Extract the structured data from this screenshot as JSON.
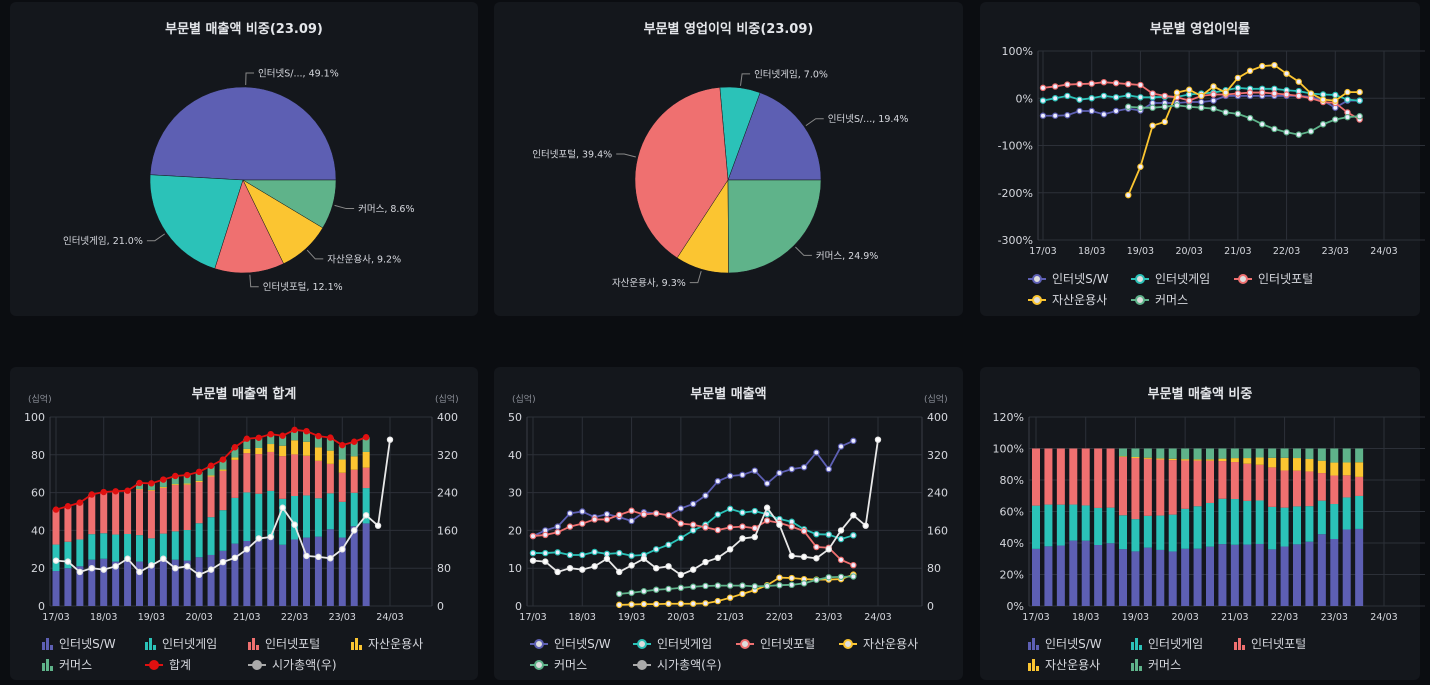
{
  "colors": {
    "sw": "#5d5fb3",
    "game": "#2bc2b8",
    "portal": "#ef7070",
    "asset": "#fbc531",
    "commerce": "#5fb38a",
    "total": "#e01010",
    "mcap": "#e8e8e8"
  },
  "segments": [
    "인터넷S/W",
    "인터넷게임",
    "인터넷포털",
    "자산운용사",
    "커머스"
  ],
  "x_ticks": [
    "17/03",
    "18/03",
    "19/03",
    "20/03",
    "21/03",
    "22/03",
    "23/03",
    "24/03"
  ],
  "unit_label": "(십억)",
  "pie_sales": {
    "title": "부문별 매출액 비중(23.09)",
    "chart_data": {
      "type": "pie",
      "labels": [
        "인터넷S/...",
        "인터넷게임",
        "인터넷포털",
        "자산운용사",
        "커머스"
      ],
      "values": [
        49.1,
        21.0,
        12.1,
        9.2,
        8.6
      ]
    }
  },
  "pie_profit": {
    "title": "부문별 영업이익 비중(23.09)",
    "chart_data": {
      "type": "pie",
      "labels": [
        "인터넷S/...",
        "인터넷게임",
        "인터넷포털",
        "자산운용사",
        "커머스"
      ],
      "values": [
        19.4,
        7.0,
        39.4,
        9.3,
        24.9
      ]
    }
  },
  "margin": {
    "title": "부문별 영업이익률",
    "chart_data": {
      "type": "line",
      "ylim": [
        -300,
        100
      ],
      "y_ticks": [
        -300,
        -200,
        -100,
        0,
        100
      ],
      "y_suffix": "%",
      "grid": true,
      "legend": "bottom",
      "series": [
        {
          "name": "인터넷S/W",
          "values": [
            -37,
            -37,
            -36,
            -27,
            -27,
            -34,
            -27,
            -22,
            -26,
            -10,
            -10,
            -10,
            -8,
            -8,
            -5,
            5,
            5,
            5,
            5,
            5,
            5,
            5,
            3,
            -5,
            -20,
            -5,
            -5
          ]
        },
        {
          "name": "인터넷게임",
          "values": [
            -5,
            0,
            5,
            -3,
            0,
            5,
            2,
            6,
            2,
            2,
            3,
            3,
            8,
            10,
            12,
            17,
            22,
            20,
            20,
            20,
            17,
            15,
            10,
            8,
            7,
            -3,
            -5
          ]
        },
        {
          "name": "인터넷포털",
          "values": [
            22,
            25,
            29,
            30,
            31,
            34,
            32,
            30,
            28,
            10,
            5,
            2,
            -5,
            5,
            8,
            8,
            10,
            12,
            12,
            10,
            8,
            5,
            0,
            -8,
            -10,
            -30,
            -45
          ]
        },
        {
          "name": "자산운용사",
          "values": [
            null,
            null,
            null,
            null,
            null,
            null,
            null,
            -205,
            -145,
            -58,
            -50,
            12,
            18,
            5,
            25,
            12,
            43,
            58,
            68,
            70,
            52,
            35,
            10,
            -3,
            -5,
            13,
            13
          ]
        },
        {
          "name": "커머스",
          "values": [
            null,
            null,
            null,
            null,
            null,
            null,
            null,
            -18,
            -20,
            -20,
            -18,
            -15,
            -18,
            -20,
            -22,
            -30,
            -33,
            -42,
            -55,
            -65,
            -72,
            -77,
            -70,
            -55,
            -45,
            -40,
            -38
          ]
        }
      ]
    }
  },
  "sales_total": {
    "title": "부문별 매출액 합계",
    "total_label": "합계",
    "mcap_label": "시가총액(우)",
    "chart_data": {
      "type": "bar",
      "stacked": true,
      "ylim": [
        0,
        100
      ],
      "y_ticks": [
        0,
        20,
        40,
        60,
        80,
        100
      ],
      "y2lim": [
        0,
        400
      ],
      "y2_ticks": [
        0,
        80,
        160,
        240,
        320,
        400
      ],
      "grid": true,
      "legend": "bottom"
    }
  },
  "sales": {
    "title": "부문별 매출액",
    "chart_data": {
      "type": "line",
      "ylim": [
        0,
        50
      ],
      "y_ticks": [
        0,
        10,
        20,
        30,
        40,
        50
      ],
      "y2lim": [
        0,
        400
      ],
      "y2_ticks": [
        0,
        80,
        160,
        240,
        320,
        400
      ],
      "grid": true,
      "legend": "bottom"
    }
  },
  "sales_share": {
    "title": "부문별 매출액 비중",
    "chart_data": {
      "type": "bar",
      "stacked": true,
      "percent": true,
      "ylim": [
        0,
        120
      ],
      "y_ticks": [
        0,
        20,
        40,
        60,
        80,
        100,
        120
      ],
      "y_suffix": "%",
      "grid": true,
      "legend": "bottom"
    }
  },
  "chart_data": {
    "type": "line",
    "segment_sales": [
      {
        "name": "인터넷S/W",
        "values": [
          18.5,
          20,
          21,
          24.5,
          25,
          23.5,
          24.3,
          23.5,
          22.5,
          24.8,
          24.5,
          24,
          25.8,
          27,
          29.2,
          33,
          34.4,
          34.7,
          35.8,
          32.4,
          35.2,
          36.2,
          36.7,
          40.6,
          36.2,
          42.2,
          43.7
        ]
      },
      {
        "name": "인터넷게임",
        "values": [
          14,
          14,
          14.2,
          13.5,
          13.5,
          14.3,
          13.8,
          14,
          13.3,
          13.5,
          15,
          16.2,
          18,
          20,
          21.5,
          24.2,
          25.7,
          24.7,
          25.1,
          24.3,
          23,
          22.3,
          20.3,
          19,
          18.9,
          17.7,
          18.7
        ]
      },
      {
        "name": "인터넷포털",
        "values": [
          18.5,
          18.8,
          19.5,
          21,
          21.8,
          22.9,
          22.9,
          24.1,
          25.2,
          24.2,
          24.5,
          24,
          21.8,
          21.5,
          20.8,
          20.1,
          20.8,
          21,
          20.6,
          22.6,
          22,
          21,
          19.8,
          15.6,
          15.4,
          12.2,
          10.8
        ]
      },
      {
        "name": "자산운용사",
        "values": [
          null,
          null,
          null,
          null,
          null,
          null,
          null,
          0.3,
          0.4,
          0.5,
          0.5,
          0.6,
          0.6,
          0.6,
          0.7,
          1.3,
          2.2,
          3.2,
          4.2,
          5.5,
          7.5,
          7.4,
          7.1,
          7,
          7,
          7.1,
          8.3
        ]
      },
      {
        "name": "커머스",
        "values": [
          null,
          null,
          null,
          null,
          null,
          null,
          null,
          3.2,
          3.5,
          3.9,
          4.3,
          4.5,
          4.8,
          5.1,
          5.3,
          5.4,
          5.4,
          5.4,
          5.2,
          5.3,
          5.5,
          5.6,
          6.0,
          6.9,
          7.6,
          7.7,
          7.8
        ]
      }
    ],
    "market_cap": {
      "name": "시가총액(우)",
      "values": [
        96,
        94,
        72,
        80,
        77,
        84,
        100,
        72,
        86,
        100,
        80,
        84,
        66,
        77,
        93,
        102,
        120,
        143,
        146,
        208,
        172,
        106,
        104,
        101,
        120,
        160,
        192,
        170,
        352
      ]
    }
  }
}
